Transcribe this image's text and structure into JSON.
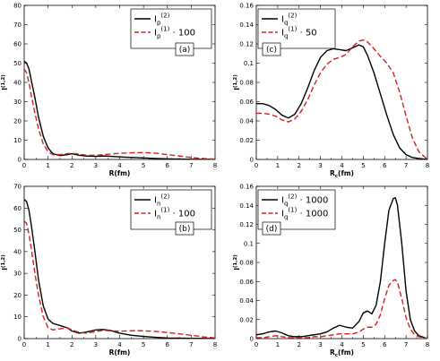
{
  "figure": {
    "sub_label": "(1,2)",
    "frac_label": "(1)",
    "sec_label": "(2)"
  },
  "chart_data": [
    {
      "id": "a",
      "type": "line",
      "panel_tag": "(a)",
      "ylabel": "I",
      "xlabel": "R(fm)",
      "xlabel_sub": "",
      "xlim": [
        0,
        8
      ],
      "ylim": [
        0,
        80
      ],
      "xticks": [
        0,
        1,
        2,
        3,
        4,
        5,
        6,
        7,
        8
      ],
      "yticks": [
        0,
        10,
        20,
        30,
        40,
        50,
        60,
        70,
        80
      ],
      "ytick_labels": [
        "0",
        "10",
        "20",
        "30",
        "40",
        "50",
        "60",
        "70",
        "80"
      ],
      "legend": [
        {
          "base": "I",
          "sub": "p",
          "sup": "(2)",
          "suffix": ""
        },
        {
          "base": "I",
          "sub": "p",
          "sup": "(1)",
          "suffix": " · 100"
        }
      ],
      "series": [
        {
          "name": "Ip(2)",
          "color": "#000000",
          "dash": "",
          "x": [
            0,
            0.1,
            0.2,
            0.3,
            0.45,
            0.6,
            0.8,
            1.0,
            1.2,
            1.5,
            1.8,
            2.0,
            2.3,
            2.6,
            3.0,
            3.4,
            3.8,
            4.2,
            4.6,
            5.0,
            5.5,
            6.0,
            6.5,
            7.0,
            7.5,
            8.0
          ],
          "y": [
            51,
            50,
            47,
            41,
            32,
            22,
            12,
            6,
            3,
            2,
            2.5,
            3,
            2.2,
            1.8,
            1.6,
            1.8,
            1.5,
            1.2,
            1.0,
            0.8,
            0.5,
            0.3,
            0.2,
            0.1,
            0.05,
            0
          ]
        },
        {
          "name": "Ip(1)·100",
          "color": "#d62020",
          "dash": "6,3",
          "x": [
            0,
            0.1,
            0.2,
            0.3,
            0.45,
            0.6,
            0.8,
            1.0,
            1.2,
            1.5,
            1.8,
            2.0,
            2.3,
            2.6,
            3.0,
            3.4,
            3.8,
            4.2,
            4.6,
            5.0,
            5.5,
            6.0,
            6.5,
            7.0,
            7.5,
            8.0
          ],
          "y": [
            47,
            45,
            40,
            33,
            24,
            16,
            8,
            4,
            2.5,
            2.5,
            3,
            3.2,
            2.8,
            2.2,
            2.2,
            2.6,
            3.0,
            3.3,
            3.5,
            3.6,
            3.3,
            2.5,
            1.8,
            1.0,
            0.5,
            0.2
          ]
        }
      ]
    },
    {
      "id": "b",
      "type": "line",
      "panel_tag": "(b)",
      "ylabel": "I",
      "xlabel": "R(fm)",
      "xlabel_sub": "",
      "xlim": [
        0,
        8
      ],
      "ylim": [
        0,
        70
      ],
      "xticks": [
        0,
        1,
        2,
        3,
        4,
        5,
        6,
        7,
        8
      ],
      "yticks": [
        0,
        10,
        20,
        30,
        40,
        50,
        60,
        70
      ],
      "ytick_labels": [
        "0",
        "10",
        "20",
        "30",
        "40",
        "50",
        "60",
        "70"
      ],
      "legend": [
        {
          "base": "I",
          "sub": "n",
          "sup": "(2)",
          "suffix": ""
        },
        {
          "base": "I",
          "sub": "n",
          "sup": "(1)",
          "suffix": " · 100"
        }
      ],
      "series": [
        {
          "name": "In(2)",
          "color": "#000000",
          "dash": "",
          "x": [
            0,
            0.1,
            0.2,
            0.3,
            0.45,
            0.6,
            0.8,
            1.0,
            1.2,
            1.5,
            1.8,
            2.0,
            2.3,
            2.6,
            3.0,
            3.3,
            3.6,
            4.0,
            4.5,
            5.0,
            5.5,
            6.0,
            6.5,
            7.0,
            7.5,
            8.0
          ],
          "y": [
            64,
            63,
            59,
            52,
            40,
            27,
            15,
            9,
            7,
            6,
            5,
            3.5,
            2.5,
            3,
            4,
            4.2,
            3.8,
            2.5,
            1.5,
            1.0,
            0.6,
            0.3,
            0.2,
            0.1,
            0.05,
            0
          ]
        },
        {
          "name": "In(1)·100",
          "color": "#d62020",
          "dash": "6,3",
          "x": [
            0,
            0.1,
            0.2,
            0.3,
            0.45,
            0.6,
            0.8,
            1.0,
            1.2,
            1.5,
            1.8,
            2.0,
            2.3,
            2.6,
            3.0,
            3.3,
            3.6,
            4.0,
            4.5,
            5.0,
            5.5,
            6.0,
            6.5,
            7.0,
            7.5,
            8.0
          ],
          "y": [
            54,
            53,
            48,
            41,
            30,
            20,
            10,
            5,
            4,
            4.5,
            5,
            4,
            2.8,
            2.5,
            3.2,
            3.8,
            3.6,
            3.4,
            3.6,
            3.6,
            3.3,
            2.8,
            2.2,
            1.5,
            0.8,
            0.3
          ]
        }
      ]
    },
    {
      "id": "c",
      "type": "line",
      "panel_tag": "(c)",
      "ylabel": "I",
      "xlabel": "R",
      "xlabel_sub": "c",
      "xlabel_tail": "(fm)",
      "xlim": [
        0,
        8
      ],
      "ylim": [
        0,
        0.16
      ],
      "xticks": [
        0,
        1,
        2,
        3,
        4,
        5,
        6,
        7,
        8
      ],
      "yticks": [
        0,
        0.02,
        0.04,
        0.06,
        0.08,
        0.1,
        0.12,
        0.14,
        0.16
      ],
      "ytick_labels": [
        "0",
        "0.02",
        "0.04",
        "0.06",
        "0.08",
        "0.1",
        "0.12",
        "0.14",
        "0.16"
      ],
      "legend": [
        {
          "base": "I",
          "sub": "q",
          "sup": "(2)",
          "suffix": ""
        },
        {
          "base": "I",
          "sub": "q",
          "sup": "(1)",
          "suffix": " · 50"
        }
      ],
      "series": [
        {
          "name": "Iq(2)",
          "color": "#000000",
          "dash": "",
          "x": [
            0,
            0.3,
            0.6,
            0.9,
            1.2,
            1.5,
            1.8,
            2.1,
            2.4,
            2.7,
            3.0,
            3.3,
            3.6,
            3.9,
            4.2,
            4.5,
            4.8,
            5.0,
            5.2,
            5.5,
            5.8,
            6.1,
            6.4,
            6.7,
            7.0,
            7.3,
            7.6,
            8.0
          ],
          "y": [
            0.058,
            0.058,
            0.056,
            0.052,
            0.046,
            0.043,
            0.047,
            0.058,
            0.074,
            0.092,
            0.106,
            0.113,
            0.115,
            0.114,
            0.113,
            0.116,
            0.119,
            0.117,
            0.108,
            0.09,
            0.068,
            0.046,
            0.026,
            0.012,
            0.005,
            0.002,
            0.001,
            0
          ]
        },
        {
          "name": "Iq(1)·50",
          "color": "#d62020",
          "dash": "6,3",
          "x": [
            0,
            0.3,
            0.6,
            0.9,
            1.2,
            1.5,
            1.8,
            2.1,
            2.4,
            2.7,
            3.0,
            3.3,
            3.6,
            3.9,
            4.2,
            4.5,
            4.8,
            5.0,
            5.2,
            5.5,
            5.8,
            6.1,
            6.4,
            6.7,
            7.0,
            7.3,
            7.6,
            8.0
          ],
          "y": [
            0.048,
            0.048,
            0.047,
            0.045,
            0.041,
            0.039,
            0.042,
            0.05,
            0.062,
            0.077,
            0.09,
            0.099,
            0.104,
            0.106,
            0.109,
            0.117,
            0.123,
            0.124,
            0.122,
            0.115,
            0.107,
            0.1,
            0.09,
            0.07,
            0.045,
            0.022,
            0.008,
            0
          ]
        }
      ]
    },
    {
      "id": "d",
      "type": "line",
      "panel_tag": "(d)",
      "ylabel": "I",
      "xlabel": "R",
      "xlabel_sub": "c",
      "xlabel_tail": "(fm)",
      "xlim": [
        0,
        8
      ],
      "ylim": [
        0,
        0.16
      ],
      "xticks": [
        0,
        1,
        2,
        3,
        4,
        5,
        6,
        7,
        8
      ],
      "yticks": [
        0,
        0.02,
        0.04,
        0.06,
        0.08,
        0.1,
        0.12,
        0.14,
        0.16
      ],
      "ytick_labels": [
        "0",
        "0.02",
        "0.04",
        "0.06",
        "0.08",
        "0.1",
        "0.12",
        "0.14",
        "0.16"
      ],
      "legend": [
        {
          "base": "I",
          "sub": "q",
          "sup": "(2)",
          "suffix": " · 1000"
        },
        {
          "base": "I",
          "sub": "q",
          "sup": "(1)",
          "suffix": " · 1000"
        }
      ],
      "series": [
        {
          "name": "Iq(2)·1000",
          "color": "#000000",
          "dash": "",
          "x": [
            0,
            0.3,
            0.6,
            0.9,
            1.2,
            1.5,
            1.8,
            2.1,
            2.4,
            2.7,
            3.0,
            3.3,
            3.6,
            3.9,
            4.2,
            4.5,
            4.8,
            5.0,
            5.2,
            5.4,
            5.6,
            5.8,
            6.0,
            6.2,
            6.4,
            6.5,
            6.6,
            6.8,
            7.0,
            7.2,
            7.4,
            7.6,
            8.0
          ],
          "y": [
            0.004,
            0.005,
            0.007,
            0.008,
            0.006,
            0.003,
            0.002,
            0.002,
            0.003,
            0.004,
            0.005,
            0.007,
            0.011,
            0.014,
            0.012,
            0.011,
            0.018,
            0.027,
            0.029,
            0.026,
            0.035,
            0.06,
            0.1,
            0.135,
            0.147,
            0.148,
            0.14,
            0.1,
            0.05,
            0.02,
            0.008,
            0.003,
            0
          ]
        },
        {
          "name": "Iq(1)·1000",
          "color": "#d62020",
          "dash": "6,3",
          "x": [
            0,
            0.3,
            0.6,
            0.9,
            1.2,
            1.5,
            1.8,
            2.1,
            2.4,
            2.7,
            3.0,
            3.3,
            3.6,
            3.9,
            4.2,
            4.5,
            4.8,
            5.0,
            5.2,
            5.4,
            5.6,
            5.8,
            6.0,
            6.2,
            6.4,
            6.5,
            6.6,
            6.8,
            7.0,
            7.2,
            7.4,
            7.6,
            8.0
          ],
          "y": [
            0.001,
            0.001,
            0.002,
            0.003,
            0.002,
            0.001,
            0.001,
            0.001,
            0.001,
            0.002,
            0.002,
            0.003,
            0.004,
            0.005,
            0.005,
            0.005,
            0.007,
            0.01,
            0.012,
            0.012,
            0.015,
            0.025,
            0.042,
            0.056,
            0.061,
            0.062,
            0.059,
            0.042,
            0.022,
            0.01,
            0.004,
            0.002,
            0
          ]
        }
      ]
    }
  ]
}
